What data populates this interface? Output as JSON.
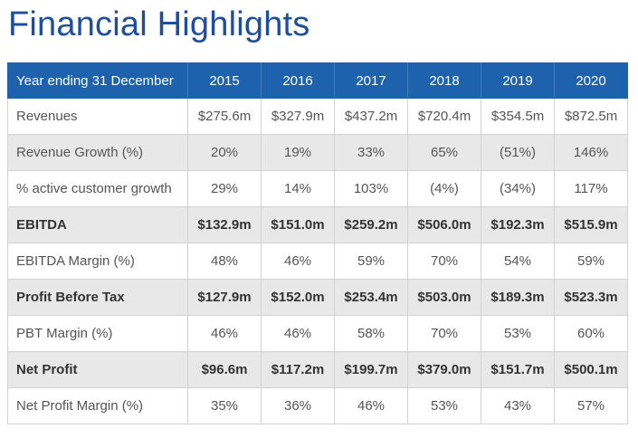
{
  "page": {
    "title": "Financial Highlights"
  },
  "table": {
    "header_label": "Year ending 31 December",
    "years": [
      "2015",
      "2016",
      "2017",
      "2018",
      "2019",
      "2020"
    ],
    "rows": [
      {
        "label": "Revenues",
        "values": [
          "$275.6m",
          "$327.9m",
          "$437.2m",
          "$720.4m",
          "$354.5m",
          "$872.5m"
        ]
      },
      {
        "label": "Revenue Growth (%)",
        "values": [
          "20%",
          "19%",
          "33%",
          "65%",
          "(51%)",
          "146%"
        ]
      },
      {
        "label": "% active customer growth",
        "values": [
          "29%",
          "14%",
          "103%",
          "(4%)",
          "(34%)",
          "117%"
        ]
      },
      {
        "label": "EBITDA",
        "values": [
          "$132.9m",
          "$151.0m",
          "$259.2m",
          "$506.0m",
          "$192.3m",
          "$515.9m"
        ]
      },
      {
        "label": "EBITDA Margin (%)",
        "values": [
          "48%",
          "46%",
          "59%",
          "70%",
          "54%",
          "59%"
        ]
      },
      {
        "label": "Profit Before Tax",
        "values": [
          "$127.9m",
          "$152.0m",
          "$253.4m",
          "$503.0m",
          "$189.3m",
          "$523.3m"
        ]
      },
      {
        "label": "PBT Margin (%)",
        "values": [
          "46%",
          "46%",
          "58%",
          "70%",
          "53%",
          "60%"
        ]
      },
      {
        "label": "Net Profit",
        "values": [
          "$96.6m",
          "$117.2m",
          "$199.7m",
          "$379.0m",
          "$151.7m",
          "$500.1m"
        ]
      },
      {
        "label": "Net Profit Margin (%)",
        "values": [
          "35%",
          "36%",
          "46%",
          "53%",
          "43%",
          "57%"
        ]
      }
    ]
  },
  "colors": {
    "title": "#1f4e9e",
    "header_bg": "#1e62ae",
    "header_text": "#ffffff",
    "shaded_row": "#e8e8e8",
    "body_text": "#555555"
  }
}
